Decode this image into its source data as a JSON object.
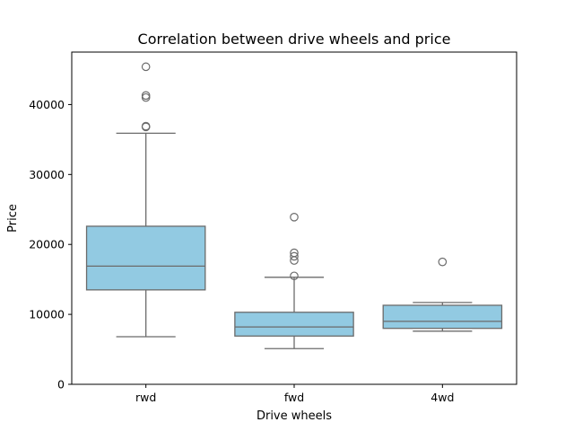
{
  "chart_data": {
    "type": "box",
    "title": "Correlation between drive wheels and price",
    "xlabel": "Drive wheels",
    "ylabel": "Price",
    "categories": [
      "rwd",
      "fwd",
      "4wd"
    ],
    "ylim": [
      0,
      47500
    ],
    "yticks": [
      0,
      10000,
      20000,
      30000,
      40000
    ],
    "ytick_labels": [
      "0",
      "10000",
      "20000",
      "30000",
      "40000"
    ],
    "grid": false,
    "legend": "none",
    "colors": {
      "box_fill": "#92cae2",
      "box_edge": "#6b6b6b",
      "axes": "#000000"
    },
    "boxes": [
      {
        "category": "rwd",
        "whisker_low": 6800,
        "q1": 13500,
        "median": 16900,
        "q3": 22600,
        "whisker_high": 35900,
        "outliers": [
          36800,
          36900,
          41000,
          41300,
          45400
        ]
      },
      {
        "category": "fwd",
        "whisker_low": 5100,
        "q1": 6900,
        "median": 8200,
        "q3": 10300,
        "whisker_high": 15300,
        "outliers": [
          15500,
          17700,
          18300,
          18800,
          23900
        ]
      },
      {
        "category": "4wd",
        "whisker_low": 7600,
        "q1": 8000,
        "median": 9000,
        "q3": 11300,
        "whisker_high": 11700,
        "outliers": [
          17500
        ]
      }
    ]
  }
}
